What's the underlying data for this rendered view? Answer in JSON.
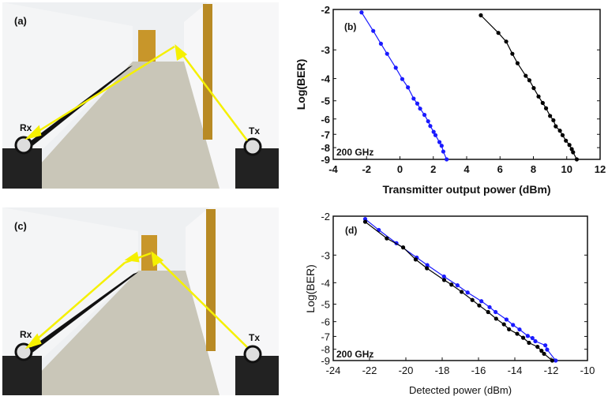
{
  "photos": [
    {
      "panel_label": "(a)",
      "rx_label": "Rx",
      "tx_label": "Tx"
    },
    {
      "panel_label": "(c)",
      "rx_label": "Rx",
      "tx_label": "Tx"
    }
  ],
  "colors": {
    "arrow": "#f5f000",
    "series_blue": "#1a1aff",
    "series_black": "#000000",
    "door": "#c8962a"
  },
  "chart_data": [
    {
      "type": "line",
      "panel_label": "(b)",
      "annotation": "200 GHz",
      "xlabel": "Transmitter output power (dBm)",
      "ylabel": "Log(BER)",
      "xlim": [
        -4,
        12
      ],
      "ylim": [
        -9,
        -2
      ],
      "y_scale": "log10(-y)",
      "xticks": [
        -4,
        -2,
        0,
        2,
        4,
        6,
        8,
        10,
        12
      ],
      "yticks": [
        -2,
        -3,
        -4,
        -5,
        -6,
        -7,
        -8,
        -9
      ],
      "series": [
        {
          "color": "#1a1aff",
          "x": [
            -2.3,
            -1.6,
            -1.14,
            -0.77,
            -0.25,
            0.14,
            0.48,
            0.82,
            1.04,
            1.21,
            1.47,
            1.69,
            1.82,
            2.02,
            2.13,
            2.37,
            2.5,
            2.6,
            2.8
          ],
          "y": [
            -2.06,
            -2.48,
            -2.82,
            -3.12,
            -3.59,
            -4.02,
            -4.37,
            -4.89,
            -5.14,
            -5.41,
            -5.76,
            -6.14,
            -6.44,
            -6.83,
            -7.06,
            -7.57,
            -7.85,
            -8.32,
            -9.0
          ]
        },
        {
          "color": "#000000",
          "x": [
            4.85,
            5.9,
            6.37,
            6.74,
            7.05,
            7.54,
            7.76,
            8.02,
            8.31,
            8.56,
            8.76,
            9.0,
            9.2,
            9.34,
            9.59,
            9.75,
            9.95,
            10.16,
            10.3,
            10.38,
            10.6
          ],
          "y": [
            -2.12,
            -2.53,
            -2.76,
            -3.12,
            -3.43,
            -3.89,
            -4.07,
            -4.4,
            -4.79,
            -5.11,
            -5.39,
            -5.82,
            -6.08,
            -6.46,
            -6.75,
            -7.06,
            -7.46,
            -7.79,
            -8.12,
            -8.38,
            -9.0
          ]
        }
      ]
    },
    {
      "type": "line",
      "panel_label": "(d)",
      "annotation": "200 GHz",
      "xlabel": "Detected power (dBm)",
      "ylabel": "Log(BER)",
      "xlim": [
        -24,
        -10
      ],
      "ylim": [
        -9,
        -2
      ],
      "y_scale": "log10(-y)",
      "xticks": [
        -24,
        -22,
        -20,
        -18,
        -16,
        -14,
        -12,
        -10
      ],
      "yticks": [
        -2,
        -3,
        -4,
        -5,
        -6,
        -7,
        -8,
        -9
      ],
      "series": [
        {
          "color": "#1a1aff",
          "x": [
            -22.24,
            -21.49,
            -20.52,
            -19.4,
            -18.82,
            -17.9,
            -17.16,
            -16.6,
            -15.84,
            -15.39,
            -15.06,
            -14.46,
            -14.1,
            -13.74,
            -13.29,
            -13.03,
            -12.87,
            -12.32,
            -12.22,
            -11.75
          ],
          "y": [
            -2.06,
            -2.31,
            -2.65,
            -3.08,
            -3.33,
            -3.75,
            -4.11,
            -4.43,
            -4.85,
            -5.16,
            -5.43,
            -5.87,
            -6.21,
            -6.51,
            -6.96,
            -7.12,
            -7.36,
            -7.68,
            -8.03,
            -9.0
          ]
        },
        {
          "color": "#000000",
          "x": [
            -22.24,
            -21.05,
            -20.15,
            -19.46,
            -18.84,
            -17.89,
            -17.49,
            -16.93,
            -16.34,
            -15.96,
            -15.47,
            -15.03,
            -14.6,
            -14.32,
            -13.87,
            -13.54,
            -13.22,
            -12.75,
            -12.53,
            -12.39,
            -11.94
          ],
          "y": [
            -2.12,
            -2.52,
            -2.77,
            -3.14,
            -3.44,
            -3.89,
            -4.08,
            -4.4,
            -4.79,
            -5.07,
            -5.43,
            -5.82,
            -6.17,
            -6.5,
            -6.81,
            -7.1,
            -7.48,
            -7.8,
            -8.13,
            -8.39,
            -9.0
          ]
        }
      ]
    }
  ]
}
